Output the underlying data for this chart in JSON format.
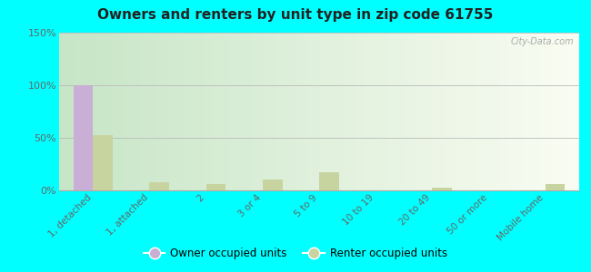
{
  "title": "Owners and renters by unit type in zip code 61755",
  "categories": [
    "1, detached",
    "1, attached",
    "2",
    "3 or 4",
    "5 to 9",
    "10 to 19",
    "20 to 49",
    "50 or more",
    "Mobile home"
  ],
  "owner_values": [
    100,
    0,
    0,
    0,
    0,
    0,
    0,
    0,
    0
  ],
  "renter_values": [
    53,
    8,
    6,
    10,
    17,
    0,
    3,
    0,
    6
  ],
  "owner_color": "#c9aed6",
  "renter_color": "#c8d4a0",
  "ylim": [
    0,
    150
  ],
  "yticks": [
    0,
    50,
    100,
    150
  ],
  "ytick_labels": [
    "0%",
    "50%",
    "100%",
    "150%"
  ],
  "background_color": "#00ffff",
  "bar_width": 0.35,
  "legend_owner": "Owner occupied units",
  "legend_renter": "Renter occupied units",
  "watermark": "City-Data.com",
  "plot_bg_color_top_left": "#d4ecd4",
  "plot_bg_color_bottom_right": "#f8faf0"
}
